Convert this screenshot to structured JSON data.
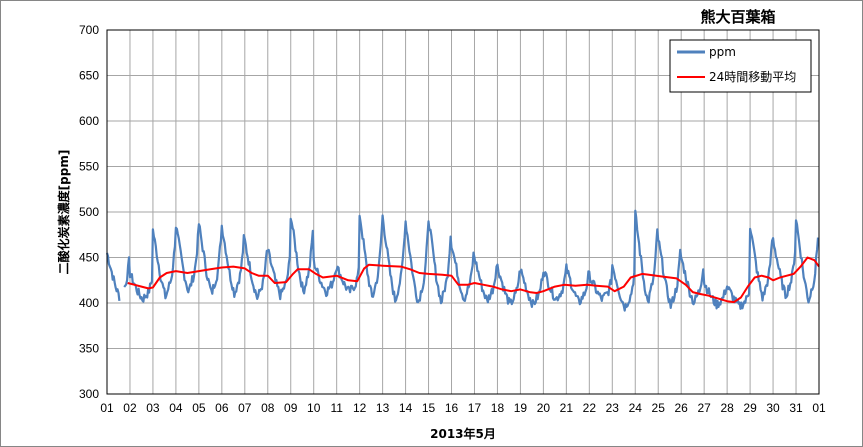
{
  "chart_data": {
    "type": "line",
    "title": "熊大百葉箱",
    "xlabel": "2013年5月",
    "ylabel": "二酸化炭素濃度[ppm]",
    "ylim": [
      300,
      700
    ],
    "yticks": [
      "300",
      "350",
      "400",
      "450",
      "500",
      "550",
      "600",
      "650",
      "700"
    ],
    "xticks": [
      "01",
      "02",
      "03",
      "04",
      "05",
      "06",
      "07",
      "08",
      "09",
      "10",
      "11",
      "12",
      "13",
      "14",
      "15",
      "16",
      "17",
      "18",
      "19",
      "20",
      "21",
      "22",
      "23",
      "24",
      "25",
      "26",
      "27",
      "28",
      "29",
      "30",
      "31",
      "01"
    ],
    "grid": true,
    "legend_position": "top-right",
    "x_unit": "day",
    "series": [
      {
        "name": "ppm",
        "color": "#4F81BD",
        "style": "hourly-diurnal",
        "daily_peaks": [
          455,
          432,
          480,
          485,
          487,
          485,
          468,
          458,
          497,
          445,
          440,
          498,
          495,
          490,
          493,
          465,
          450,
          440,
          437,
          437,
          438,
          430,
          442,
          498,
          470,
          450,
          422,
          418,
          485,
          470,
          493
        ],
        "daily_min": [
          406,
          404,
          406,
          412,
          410,
          410,
          405,
          408,
          412,
          412,
          412,
          405,
          402,
          400,
          400,
          404,
          402,
          398,
          398,
          404,
          400,
          404,
          395,
          400,
          396,
          400,
          398,
          396,
          405,
          408,
          402
        ]
      },
      {
        "name": "24時間移動平均",
        "color": "#FF0000",
        "points": [
          [
            1.9,
            422
          ],
          [
            2.2,
            420
          ],
          [
            2.5,
            418
          ],
          [
            2.8,
            416
          ],
          [
            3.0,
            417
          ],
          [
            3.3,
            428
          ],
          [
            3.6,
            433
          ],
          [
            4.0,
            435
          ],
          [
            4.5,
            433
          ],
          [
            5.0,
            435
          ],
          [
            5.5,
            437
          ],
          [
            6.0,
            439
          ],
          [
            6.5,
            440
          ],
          [
            7.0,
            438
          ],
          [
            7.3,
            433
          ],
          [
            7.6,
            430
          ],
          [
            8.0,
            430
          ],
          [
            8.3,
            422
          ],
          [
            8.8,
            423
          ],
          [
            9.1,
            432
          ],
          [
            9.3,
            437
          ],
          [
            9.8,
            437
          ],
          [
            10.1,
            432
          ],
          [
            10.4,
            428
          ],
          [
            11.0,
            430
          ],
          [
            11.5,
            425
          ],
          [
            11.9,
            424
          ],
          [
            12.2,
            438
          ],
          [
            12.4,
            442
          ],
          [
            13.0,
            441
          ],
          [
            13.8,
            440
          ],
          [
            14.2,
            437
          ],
          [
            14.6,
            433
          ],
          [
            15.0,
            432
          ],
          [
            15.6,
            431
          ],
          [
            16.0,
            430
          ],
          [
            16.3,
            420
          ],
          [
            16.7,
            420
          ],
          [
            17.0,
            422
          ],
          [
            17.4,
            420
          ],
          [
            17.8,
            418
          ],
          [
            18.2,
            415
          ],
          [
            18.6,
            413
          ],
          [
            19.0,
            415
          ],
          [
            19.4,
            412
          ],
          [
            19.7,
            411
          ],
          [
            20.0,
            413
          ],
          [
            20.5,
            418
          ],
          [
            20.9,
            420
          ],
          [
            21.4,
            419
          ],
          [
            21.9,
            420
          ],
          [
            22.3,
            419
          ],
          [
            22.8,
            418
          ],
          [
            23.1,
            413
          ],
          [
            23.5,
            418
          ],
          [
            23.8,
            428
          ],
          [
            24.3,
            432
          ],
          [
            24.6,
            431
          ],
          [
            25.2,
            429
          ],
          [
            25.8,
            427
          ],
          [
            26.2,
            420
          ],
          [
            26.5,
            412
          ],
          [
            26.8,
            410
          ],
          [
            27.2,
            408
          ],
          [
            27.6,
            405
          ],
          [
            28.0,
            402
          ],
          [
            28.3,
            401
          ],
          [
            28.6,
            406
          ],
          [
            28.9,
            418
          ],
          [
            29.2,
            428
          ],
          [
            29.5,
            430
          ],
          [
            29.8,
            428
          ],
          [
            30.0,
            425
          ],
          [
            30.3,
            428
          ],
          [
            30.6,
            430
          ],
          [
            30.9,
            432
          ],
          [
            31.2,
            440
          ],
          [
            31.5,
            450
          ],
          [
            31.8,
            447
          ],
          [
            32.0,
            440
          ]
        ]
      }
    ]
  }
}
